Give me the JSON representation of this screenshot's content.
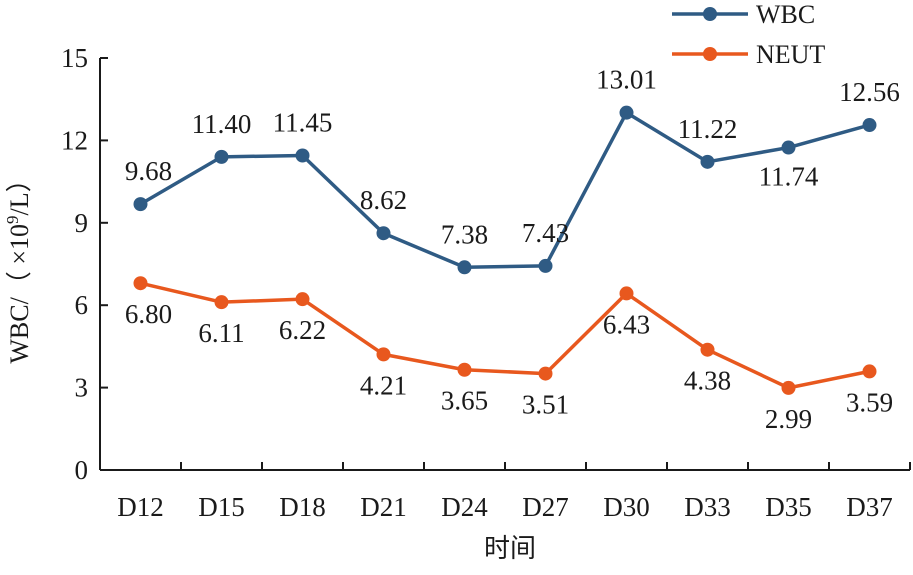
{
  "chart_data": {
    "type": "line",
    "categories": [
      "D12",
      "D15",
      "D18",
      "D21",
      "D24",
      "D27",
      "D30",
      "D33",
      "D35",
      "D37"
    ],
    "series": [
      {
        "name": "WBC",
        "color": "#2f5b84",
        "values": [
          9.68,
          11.4,
          11.45,
          8.62,
          7.38,
          7.43,
          13.01,
          11.22,
          11.74,
          12.56
        ],
        "labels": [
          "9.68",
          "11.40",
          "11.45",
          "8.62",
          "7.38",
          "7.43",
          "13.01",
          "11.22",
          "11.74",
          "12.56"
        ]
      },
      {
        "name": "NEUT",
        "color": "#e8581e",
        "values": [
          6.8,
          6.11,
          6.22,
          4.21,
          3.65,
          3.51,
          6.43,
          4.38,
          2.99,
          3.59
        ],
        "labels": [
          "6.80",
          "6.11",
          "6.22",
          "4.21",
          "3.65",
          "3.51",
          "6.43",
          "4.38",
          "2.99",
          "3.59"
        ]
      }
    ],
    "title": "",
    "xlabel": "时间",
    "ylabel_prefix": "WBC/（ ×10",
    "ylabel_sup": "9",
    "ylabel_suffix": "/L）",
    "ylim": [
      0,
      15
    ],
    "yticks": [
      "0",
      "3",
      "6",
      "9",
      "12",
      "15"
    ],
    "grid": false,
    "legend": "top-right"
  }
}
